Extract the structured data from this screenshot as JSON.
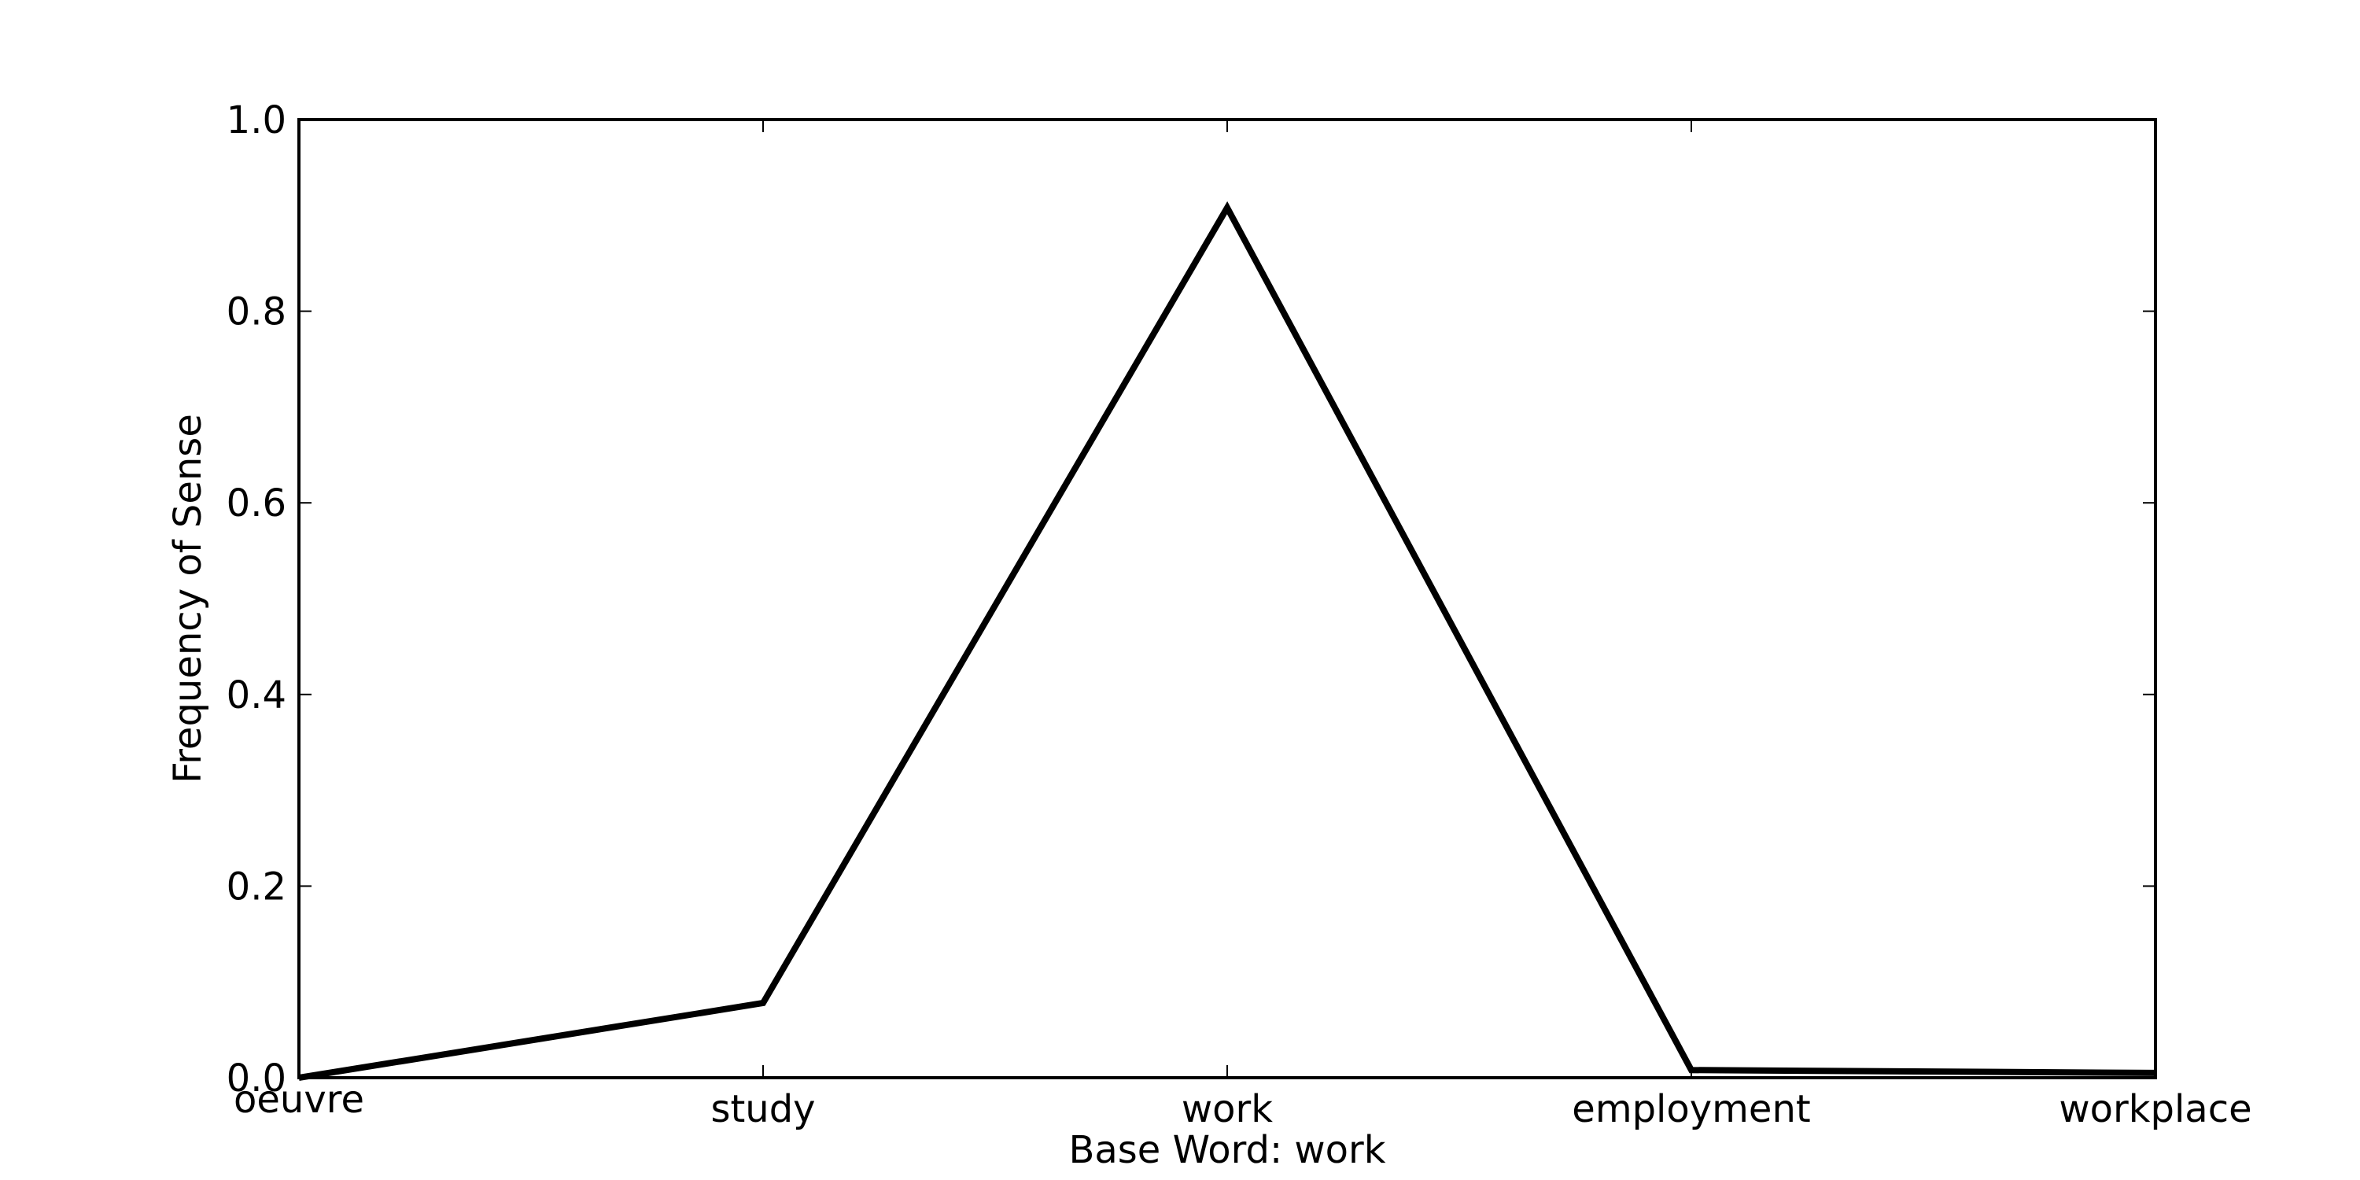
{
  "chart_data": {
    "type": "line",
    "title": "",
    "xlabel": "Base Word: work",
    "ylabel": "Frequency of Sense",
    "categories": [
      "oeuvre",
      "study",
      "work",
      "employment",
      "workplace"
    ],
    "series": [
      {
        "values": [
          0.0,
          0.078,
          0.908,
          0.008,
          0.005
        ]
      }
    ],
    "ylim": [
      0.0,
      1.0
    ],
    "yticks": [
      "0.0",
      "0.2",
      "0.4",
      "0.6",
      "0.8",
      "1.0"
    ],
    "grid": false,
    "legend": "none",
    "line_color": "#000000"
  }
}
